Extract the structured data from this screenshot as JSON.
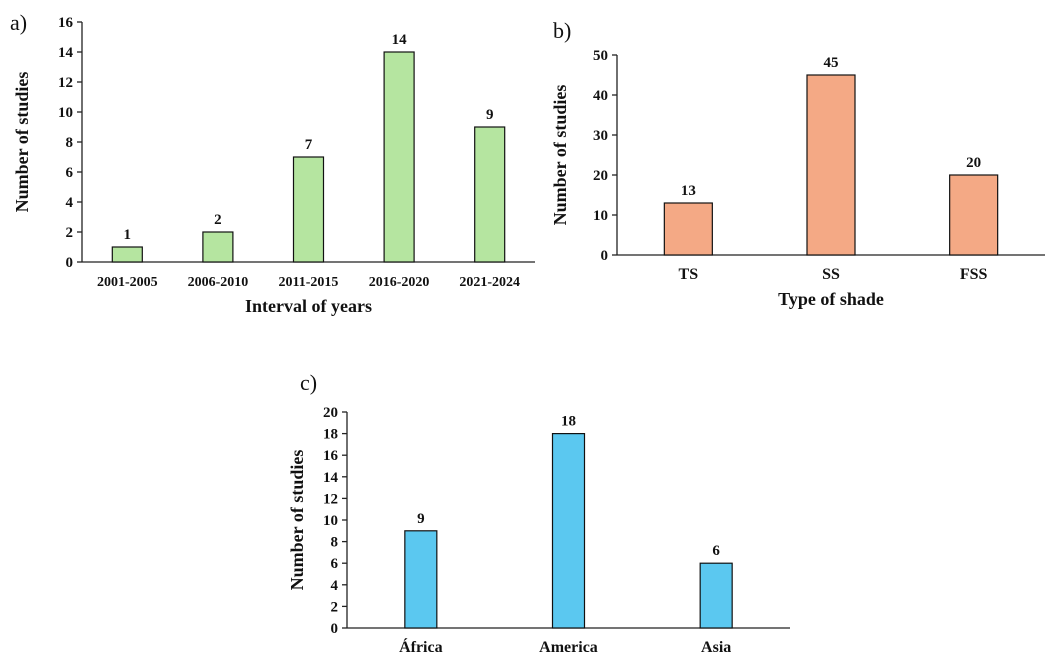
{
  "chart_data": [
    {
      "type": "bar",
      "label": "a)",
      "xlabel": "Interval of years",
      "ylabel": "Number of studies",
      "categories": [
        "2001-2005",
        "2006-2010",
        "2011-2015",
        "2016-2020",
        "2021-2024"
      ],
      "values": [
        1,
        2,
        7,
        14,
        9
      ],
      "color": "#b5e5a0",
      "ylim": [
        0,
        16
      ],
      "yticks": [
        0,
        2,
        4,
        6,
        8,
        10,
        12,
        14,
        16
      ]
    },
    {
      "type": "bar",
      "label": "b)",
      "xlabel": "Type of shade",
      "ylabel": "Number of studies",
      "categories": [
        "TS",
        "SS",
        "FSS"
      ],
      "values": [
        13,
        45,
        20
      ],
      "color": "#f4a985",
      "ylim": [
        0,
        50
      ],
      "yticks": [
        0,
        10,
        20,
        30,
        40,
        50
      ]
    },
    {
      "type": "bar",
      "label": "c)",
      "ylabel": "Number of studies",
      "categories": [
        "África",
        "America",
        "Asia"
      ],
      "values": [
        9,
        18,
        6
      ],
      "color": "#5bc8f0",
      "ylim": [
        0,
        20
      ],
      "yticks": [
        0,
        2,
        4,
        6,
        8,
        10,
        12,
        14,
        16,
        18,
        20
      ]
    }
  ]
}
